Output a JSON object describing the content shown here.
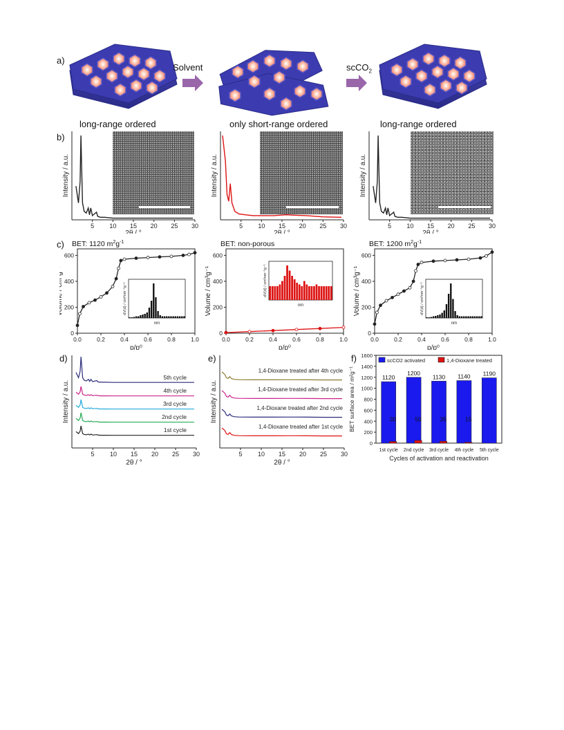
{
  "panel_labels": {
    "a": "a)",
    "b": "b)",
    "c": "c)",
    "d": "d)",
    "e": "e)",
    "f": "f)"
  },
  "schematic": {
    "arrow1_label": "Solvent",
    "arrow2_label": "scCO",
    "arrow2_label_sub": "2",
    "captions": [
      "long-range ordered",
      "only short-range ordered",
      "long-range ordered"
    ]
  },
  "xrd_b": {
    "ylabel": "Intensity / a.u.",
    "xlabel": "2θ / °",
    "xticks": [
      "5",
      "10",
      "15",
      "20",
      "25",
      "30"
    ]
  },
  "sorption_c": {
    "titles": [
      "BET: 1120 m",
      "BET: non-porous",
      "BET: 1200 m"
    ],
    "title_units": "2g-1",
    "ylabel": "Volume / cm³g⁻¹",
    "xlabel": "p/p⁰",
    "xticks": [
      "0.0",
      "0.2",
      "0.4",
      "0.6",
      "0.8",
      "1.0"
    ],
    "yticks": [
      "0",
      "200",
      "400",
      "600"
    ],
    "inset_ylabel": "dV(d) / cm³nm⁻¹g⁻¹",
    "inset_xlabel": "nm"
  },
  "cycles_d": {
    "ylabel": "Intensity / a.u.",
    "xlabel": "2θ / °",
    "labels": [
      "5th cycle",
      "4th cycle",
      "3rd cycle",
      "2nd cycle",
      "1st cycle"
    ],
    "xticks": [
      "5",
      "10",
      "15",
      "20",
      "25",
      "30"
    ]
  },
  "cycles_e": {
    "ylabel": "Intensity / a.u.",
    "xlabel": "2θ / °",
    "labels": [
      "1,4-Dioxane treated after 4th cycle",
      "1,4-Dioxane treated after 3rd cycle",
      "1,4-Dioxane treated after 2nd cycle",
      "1,4-Dioxane treated after 1st cycle"
    ],
    "xticks": [
      "5",
      "10",
      "15",
      "20",
      "25",
      "30"
    ]
  },
  "colors": {
    "blue": "#1a1aee",
    "red": "#dd1111",
    "navy": "#2a2a7a",
    "magenta": "#cc2288",
    "cyan": "#22aadd",
    "green": "#22aa55",
    "olive": "#8a7a30",
    "arrow": "#9966aa"
  },
  "chart_data": [
    {
      "type": "line",
      "panel": "b-left",
      "xlabel": "2θ / °",
      "ylabel": "Intensity / a.u.",
      "xlim": [
        0,
        30
      ],
      "x": [
        1.0,
        1.6,
        2.0,
        2.2,
        2.4,
        2.6,
        3.0,
        3.5,
        4.0,
        4.3,
        4.6,
        5.0,
        6.0,
        6.3,
        7.0,
        8.0,
        10,
        15,
        20,
        25,
        29.5
      ],
      "y": [
        0.4,
        0.2,
        0.45,
        1.0,
        0.6,
        0.2,
        0.1,
        0.08,
        0.14,
        0.06,
        0.14,
        0.05,
        0.09,
        0.04,
        0.03,
        0.03,
        0.02,
        0.02,
        0.02,
        0.02,
        0.02
      ]
    },
    {
      "type": "line",
      "panel": "b-middle",
      "xlabel": "2θ / °",
      "ylabel": "Intensity / a.u.",
      "xlim": [
        0,
        30
      ],
      "x": [
        0.5,
        1.2,
        1.6,
        2.0,
        2.4,
        2.8,
        3.5,
        4.5,
        6,
        8,
        10,
        13,
        16,
        18,
        21,
        25,
        29.5
      ],
      "y": [
        1.0,
        0.7,
        0.3,
        0.22,
        0.43,
        0.2,
        0.1,
        0.07,
        0.06,
        0.05,
        0.05,
        0.05,
        0.06,
        0.055,
        0.05,
        0.035,
        0.03
      ]
    },
    {
      "type": "line",
      "panel": "b-right",
      "xlabel": "2θ / °",
      "ylabel": "Intensity / a.u.",
      "xlim": [
        0,
        30
      ],
      "x": [
        1.0,
        1.6,
        2.0,
        2.2,
        2.4,
        2.6,
        3.0,
        3.5,
        4.0,
        4.3,
        4.6,
        5.0,
        6.0,
        6.3,
        7.0,
        8.0,
        10,
        15,
        20,
        25,
        29.5
      ],
      "y": [
        0.4,
        0.2,
        0.45,
        1.0,
        0.6,
        0.2,
        0.1,
        0.08,
        0.14,
        0.06,
        0.14,
        0.05,
        0.09,
        0.04,
        0.03,
        0.03,
        0.02,
        0.02,
        0.02,
        0.02,
        0.02
      ]
    },
    {
      "type": "line",
      "panel": "c-left",
      "title": "BET: 1120 m2g-1",
      "xlabel": "p/p⁰",
      "ylabel": "Volume / cm³g⁻¹",
      "xlim": [
        0,
        1.0
      ],
      "ylim": [
        0,
        650
      ],
      "x": [
        0.0,
        0.02,
        0.05,
        0.1,
        0.15,
        0.2,
        0.25,
        0.3,
        0.33,
        0.35,
        0.37,
        0.4,
        0.5,
        0.6,
        0.7,
        0.8,
        0.9,
        0.95,
        1.0
      ],
      "y": [
        60,
        150,
        205,
        235,
        255,
        280,
        310,
        360,
        420,
        500,
        560,
        570,
        578,
        583,
        588,
        592,
        600,
        607,
        620
      ]
    },
    {
      "type": "line",
      "panel": "c-middle",
      "title": "BET: non-porous",
      "xlabel": "p/p⁰",
      "ylabel": "Volume / cm³g⁻¹",
      "xlim": [
        0,
        1.0
      ],
      "ylim": [
        0,
        650
      ],
      "x": [
        0.0,
        0.2,
        0.4,
        0.6,
        0.8,
        1.0
      ],
      "y": [
        5,
        12,
        20,
        28,
        36,
        45
      ]
    },
    {
      "type": "line",
      "panel": "c-right",
      "title": "BET: 1200 m2g-1",
      "xlabel": "p/p⁰",
      "ylabel": "Volume / cm³g⁻¹",
      "xlim": [
        0,
        1.0
      ],
      "ylim": [
        0,
        650
      ],
      "x": [
        0.0,
        0.02,
        0.05,
        0.1,
        0.15,
        0.2,
        0.25,
        0.3,
        0.33,
        0.35,
        0.37,
        0.4,
        0.5,
        0.6,
        0.7,
        0.8,
        0.9,
        0.95,
        1.0
      ],
      "y": [
        70,
        160,
        215,
        250,
        275,
        300,
        325,
        350,
        400,
        480,
        530,
        545,
        555,
        560,
        565,
        570,
        580,
        595,
        625
      ]
    },
    {
      "type": "bar",
      "panel": "f",
      "xlabel": "Cycles of activation and reactivation",
      "ylabel": "BET surface area / m²g⁻¹",
      "categories": [
        "1st cycle",
        "2nd cycle",
        "3rd cycle",
        "4th cycle",
        "5th cycle"
      ],
      "ylim": [
        0,
        1600
      ],
      "yticks": [
        "0",
        "200",
        "400",
        "600",
        "800",
        "1000",
        "1200",
        "1400",
        "1600"
      ],
      "legend": "top",
      "series": [
        {
          "name": "scCO2 activated",
          "values": [
            1120,
            1200,
            1130,
            1140,
            1190
          ]
        },
        {
          "name": "1,4-Dioxane treated",
          "values": [
            30,
            50,
            35,
            15,
            null
          ]
        }
      ]
    }
  ]
}
